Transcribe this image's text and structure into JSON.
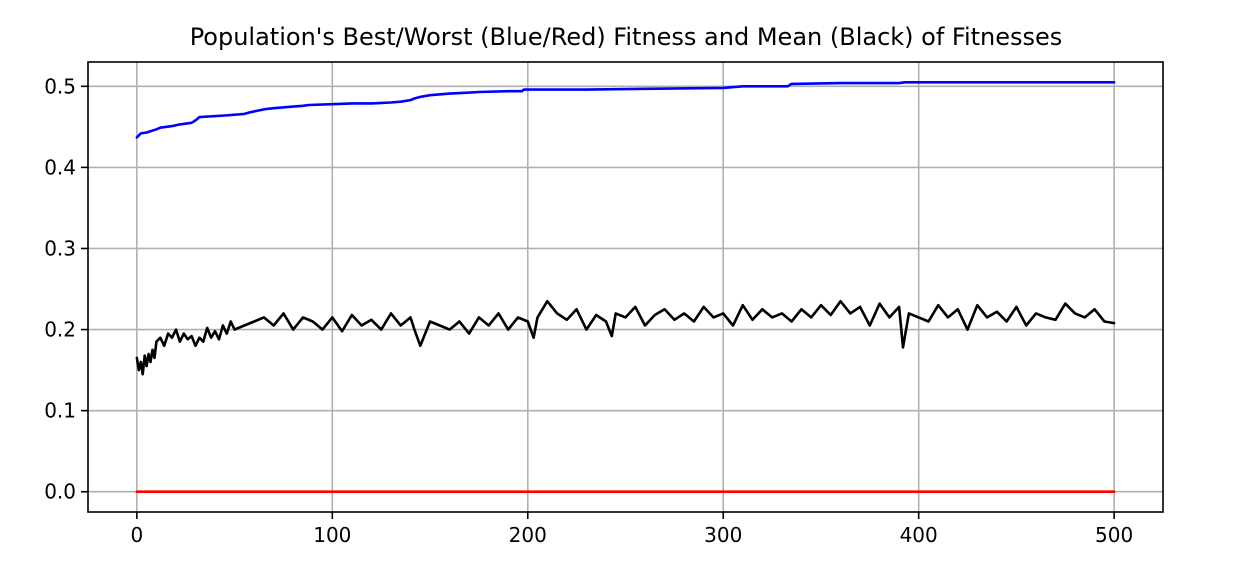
{
  "chart_data": {
    "type": "line",
    "title": "Population's Best/Worst (Blue/Red) Fitness and Mean (Black) of Fitnesses",
    "xlabel": "",
    "ylabel": "",
    "xlim": [
      -25,
      525
    ],
    "ylim": [
      -0.025,
      0.53
    ],
    "xticks": [
      0,
      100,
      200,
      300,
      400,
      500
    ],
    "xtick_labels": [
      "0",
      "100",
      "200",
      "300",
      "400",
      "500"
    ],
    "yticks": [
      0.0,
      0.1,
      0.2,
      0.3,
      0.4,
      0.5
    ],
    "ytick_labels": [
      "0.0",
      "0.1",
      "0.2",
      "0.3",
      "0.4",
      "0.5"
    ],
    "grid": true,
    "legend": "none",
    "colors": {
      "best": "#0000ff",
      "worst": "#ff0000",
      "mean": "#000000",
      "grid": "#b0b0b0"
    },
    "series": [
      {
        "color": "#0000ff",
        "x": [
          0,
          2,
          5,
          10,
          12,
          18,
          22,
          28,
          30,
          32,
          45,
          55,
          58,
          62,
          66,
          70,
          80,
          85,
          88,
          100,
          110,
          120,
          130,
          135,
          140,
          142,
          145,
          150,
          160,
          168,
          175,
          190,
          197,
          198,
          230,
          260,
          300,
          310,
          333,
          335,
          360,
          390,
          393,
          430,
          470,
          500
        ],
        "y": [
          0.437,
          0.442,
          0.443,
          0.447,
          0.449,
          0.451,
          0.453,
          0.455,
          0.458,
          0.462,
          0.464,
          0.466,
          0.468,
          0.47,
          0.472,
          0.473,
          0.475,
          0.476,
          0.477,
          0.478,
          0.479,
          0.479,
          0.48,
          0.481,
          0.483,
          0.485,
          0.487,
          0.489,
          0.491,
          0.492,
          0.493,
          0.494,
          0.494,
          0.496,
          0.496,
          0.497,
          0.498,
          0.5,
          0.5,
          0.503,
          0.504,
          0.504,
          0.505,
          0.505,
          0.505,
          0.505
        ]
      },
      {
        "color": "#ff0000",
        "x": [
          0,
          500
        ],
        "y": [
          0.0,
          0.0
        ]
      },
      {
        "color": "#000000",
        "x": [
          0,
          1,
          2,
          3,
          4,
          5,
          6,
          7,
          8,
          9,
          10,
          12,
          14,
          16,
          18,
          20,
          22,
          24,
          26,
          28,
          30,
          32,
          34,
          36,
          38,
          40,
          42,
          44,
          46,
          48,
          50,
          55,
          60,
          65,
          70,
          75,
          80,
          85,
          90,
          95,
          100,
          105,
          110,
          115,
          120,
          125,
          130,
          135,
          140,
          142,
          145,
          150,
          155,
          160,
          165,
          170,
          175,
          180,
          185,
          190,
          195,
          200,
          203,
          205,
          210,
          215,
          220,
          225,
          230,
          235,
          240,
          243,
          245,
          250,
          255,
          260,
          265,
          270,
          275,
          280,
          285,
          290,
          295,
          300,
          305,
          310,
          315,
          320,
          325,
          330,
          335,
          340,
          345,
          350,
          355,
          360,
          365,
          370,
          375,
          380,
          385,
          390,
          392,
          395,
          400,
          405,
          410,
          415,
          420,
          425,
          430,
          435,
          440,
          445,
          450,
          455,
          460,
          465,
          470,
          475,
          480,
          485,
          490,
          495,
          500
        ],
        "y": [
          0.165,
          0.15,
          0.16,
          0.145,
          0.168,
          0.155,
          0.17,
          0.16,
          0.175,
          0.165,
          0.185,
          0.19,
          0.18,
          0.195,
          0.19,
          0.2,
          0.185,
          0.195,
          0.188,
          0.192,
          0.18,
          0.19,
          0.185,
          0.202,
          0.19,
          0.198,
          0.188,
          0.205,
          0.195,
          0.21,
          0.2,
          0.205,
          0.21,
          0.215,
          0.205,
          0.22,
          0.2,
          0.215,
          0.21,
          0.2,
          0.215,
          0.198,
          0.218,
          0.205,
          0.212,
          0.2,
          0.22,
          0.205,
          0.215,
          0.2,
          0.18,
          0.21,
          0.205,
          0.2,
          0.21,
          0.195,
          0.215,
          0.205,
          0.22,
          0.2,
          0.215,
          0.21,
          0.19,
          0.215,
          0.235,
          0.22,
          0.212,
          0.225,
          0.2,
          0.218,
          0.21,
          0.192,
          0.22,
          0.215,
          0.228,
          0.205,
          0.218,
          0.225,
          0.212,
          0.22,
          0.21,
          0.228,
          0.215,
          0.22,
          0.205,
          0.23,
          0.212,
          0.225,
          0.215,
          0.22,
          0.21,
          0.225,
          0.215,
          0.23,
          0.218,
          0.235,
          0.22,
          0.228,
          0.205,
          0.232,
          0.215,
          0.228,
          0.178,
          0.22,
          0.215,
          0.21,
          0.23,
          0.215,
          0.225,
          0.2,
          0.23,
          0.215,
          0.222,
          0.21,
          0.228,
          0.205,
          0.22,
          0.215,
          0.212,
          0.232,
          0.22,
          0.215,
          0.225,
          0.21,
          0.208
        ]
      }
    ]
  }
}
